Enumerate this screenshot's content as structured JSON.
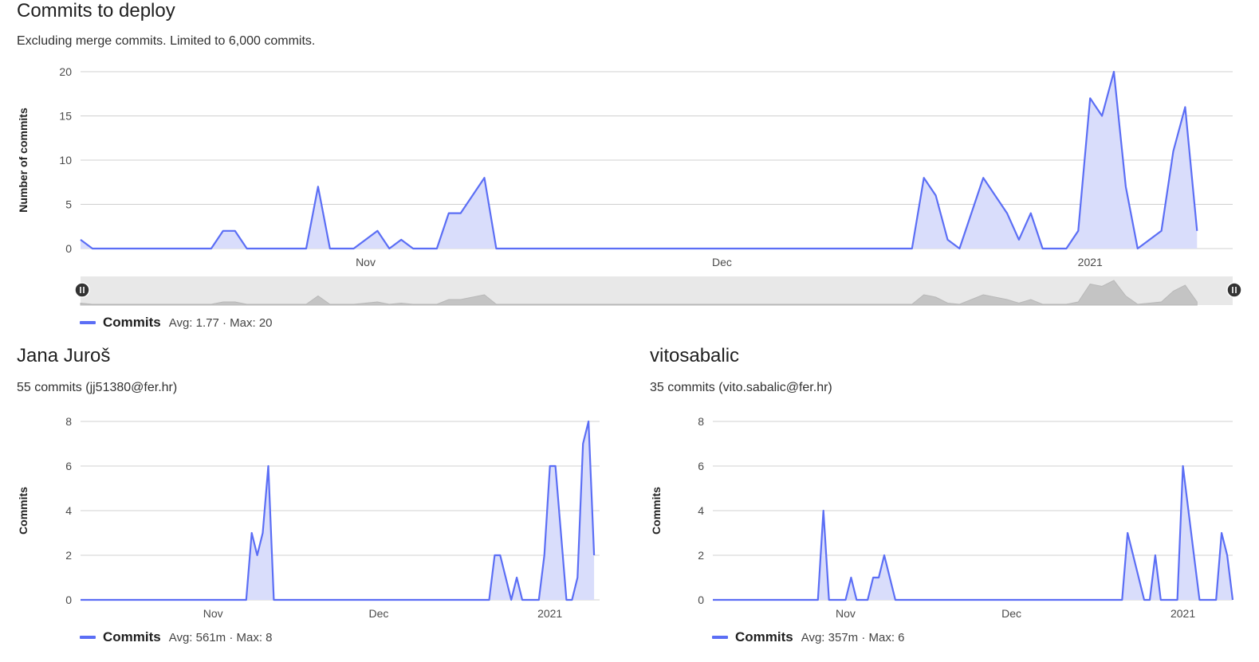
{
  "main_chart": {
    "title": "Commits to deploy",
    "subtitle": "Excluding merge commits. Limited to 6,000 commits.",
    "legend": {
      "label": "Commits",
      "stats": "Avg: 1.77 · Max: 20"
    }
  },
  "authors": [
    {
      "name": "Jana Juroš",
      "summary": "55 commits (jj51380@fer.hr)",
      "legend": {
        "label": "Commits",
        "stats": "Avg: 561m · Max: 8"
      }
    },
    {
      "name": "vitosabalic",
      "summary": "35 commits (vito.sabalic@fer.hr)",
      "legend": {
        "label": "Commits",
        "stats": "Avg: 357m · Max: 6"
      }
    }
  ],
  "colors": {
    "series": "#5b6ef5",
    "fill": "#d9ddfb",
    "grid": "#d0d0d0",
    "navigator_bg": "#e8e8e8",
    "navigator_fill": "#c4c4c4"
  },
  "chart_data": [
    {
      "type": "area",
      "ylabel": "Number of commits",
      "ylim": [
        0,
        20
      ],
      "yticks": [
        0,
        5,
        10,
        15,
        20
      ],
      "xlim": [
        "2020-10-08",
        "2021-01-13"
      ],
      "xticks": [
        {
          "date": "2020-11-01",
          "label": "Nov"
        },
        {
          "date": "2020-12-01",
          "label": "Dec"
        },
        {
          "date": "2021-01-01",
          "label": "2021"
        }
      ],
      "grid": true,
      "navigator": true,
      "series": [
        {
          "name": "Commits",
          "points": [
            [
              "2020-10-08",
              1
            ],
            [
              "2020-10-09",
              0
            ],
            [
              "2020-10-19",
              0
            ],
            [
              "2020-10-20",
              2
            ],
            [
              "2020-10-21",
              2
            ],
            [
              "2020-10-22",
              0
            ],
            [
              "2020-10-27",
              0
            ],
            [
              "2020-10-28",
              7
            ],
            [
              "2020-10-29",
              0
            ],
            [
              "2020-10-31",
              0
            ],
            [
              "2020-11-02",
              2
            ],
            [
              "2020-11-03",
              0
            ],
            [
              "2020-11-04",
              1
            ],
            [
              "2020-11-05",
              0
            ],
            [
              "2020-11-07",
              0
            ],
            [
              "2020-11-08",
              4
            ],
            [
              "2020-11-09",
              4
            ],
            [
              "2020-11-11",
              8
            ],
            [
              "2020-11-12",
              0
            ],
            [
              "2020-12-17",
              0
            ],
            [
              "2020-12-18",
              8
            ],
            [
              "2020-12-19",
              6
            ],
            [
              "2020-12-20",
              1
            ],
            [
              "2020-12-21",
              0
            ],
            [
              "2020-12-23",
              8
            ],
            [
              "2020-12-25",
              4
            ],
            [
              "2020-12-26",
              1
            ],
            [
              "2020-12-27",
              4
            ],
            [
              "2020-12-28",
              0
            ],
            [
              "2020-12-30",
              0
            ],
            [
              "2020-12-31",
              2
            ],
            [
              "2021-01-01",
              17
            ],
            [
              "2021-01-02",
              15
            ],
            [
              "2021-01-03",
              20
            ],
            [
              "2021-01-04",
              7
            ],
            [
              "2021-01-05",
              0
            ],
            [
              "2021-01-07",
              2
            ],
            [
              "2021-01-08",
              11
            ],
            [
              "2021-01-09",
              16
            ],
            [
              "2021-01-10",
              2
            ]
          ]
        }
      ]
    },
    {
      "type": "area",
      "ylabel": "Commits",
      "ylim": [
        0,
        8
      ],
      "yticks": [
        0,
        2,
        4,
        6,
        8
      ],
      "xlim": [
        "2020-10-08",
        "2021-01-10"
      ],
      "xticks": [
        {
          "date": "2020-11-01",
          "label": "Nov"
        },
        {
          "date": "2020-12-01",
          "label": "Dec"
        },
        {
          "date": "2021-01-01",
          "label": "2021"
        }
      ],
      "grid": true,
      "series": [
        {
          "name": "Commits",
          "points": [
            [
              "2020-10-08",
              0
            ],
            [
              "2020-11-07",
              0
            ],
            [
              "2020-11-08",
              3
            ],
            [
              "2020-11-09",
              2
            ],
            [
              "2020-11-10",
              3
            ],
            [
              "2020-11-11",
              6
            ],
            [
              "2020-11-12",
              0
            ],
            [
              "2020-12-21",
              0
            ],
            [
              "2020-12-22",
              2
            ],
            [
              "2020-12-23",
              2
            ],
            [
              "2020-12-25",
              0
            ],
            [
              "2020-12-26",
              1
            ],
            [
              "2020-12-27",
              0
            ],
            [
              "2020-12-30",
              0
            ],
            [
              "2020-12-31",
              2
            ],
            [
              "2021-01-01",
              6
            ],
            [
              "2021-01-02",
              6
            ],
            [
              "2021-01-04",
              0
            ],
            [
              "2021-01-05",
              0
            ],
            [
              "2021-01-06",
              1
            ],
            [
              "2021-01-07",
              7
            ],
            [
              "2021-01-08",
              8
            ],
            [
              "2021-01-09",
              2
            ]
          ]
        }
      ]
    },
    {
      "type": "area",
      "ylabel": "Commits",
      "ylim": [
        0,
        8
      ],
      "yticks": [
        0,
        2,
        4,
        6,
        8
      ],
      "xlim": [
        "2020-10-08",
        "2021-01-10"
      ],
      "xticks": [
        {
          "date": "2020-11-01",
          "label": "Nov"
        },
        {
          "date": "2020-12-01",
          "label": "Dec"
        },
        {
          "date": "2021-01-01",
          "label": "2021"
        }
      ],
      "grid": true,
      "series": [
        {
          "name": "Commits",
          "points": [
            [
              "2020-10-08",
              0
            ],
            [
              "2020-10-27",
              0
            ],
            [
              "2020-10-28",
              4
            ],
            [
              "2020-10-29",
              0
            ],
            [
              "2020-11-01",
              0
            ],
            [
              "2020-11-02",
              1
            ],
            [
              "2020-11-03",
              0
            ],
            [
              "2020-11-05",
              0
            ],
            [
              "2020-11-06",
              1
            ],
            [
              "2020-11-07",
              1
            ],
            [
              "2020-11-08",
              2
            ],
            [
              "2020-11-10",
              0
            ],
            [
              "2020-12-21",
              0
            ],
            [
              "2020-12-22",
              3
            ],
            [
              "2020-12-25",
              0
            ],
            [
              "2020-12-26",
              0
            ],
            [
              "2020-12-27",
              2
            ],
            [
              "2020-12-28",
              0
            ],
            [
              "2020-12-31",
              0
            ],
            [
              "2021-01-01",
              6
            ],
            [
              "2021-01-03",
              2
            ],
            [
              "2021-01-04",
              0
            ],
            [
              "2021-01-07",
              0
            ],
            [
              "2021-01-08",
              3
            ],
            [
              "2021-01-09",
              2
            ],
            [
              "2021-01-10",
              0
            ]
          ]
        }
      ]
    }
  ]
}
